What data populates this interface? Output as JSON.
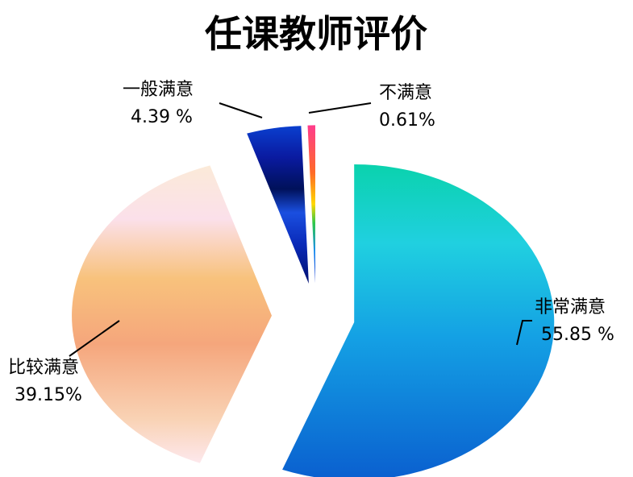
{
  "chart_data": {
    "type": "pie",
    "title": "任课教师评价",
    "categories": [
      "非常满意",
      "比较满意",
      "一般满意",
      "不满意"
    ],
    "values": [
      55.85,
      39.15,
      4.39,
      0.61
    ],
    "value_labels": [
      "55.85 %",
      "39.15%",
      "4.39 %",
      "0.61%"
    ],
    "legend": "none",
    "exploded": true
  }
}
